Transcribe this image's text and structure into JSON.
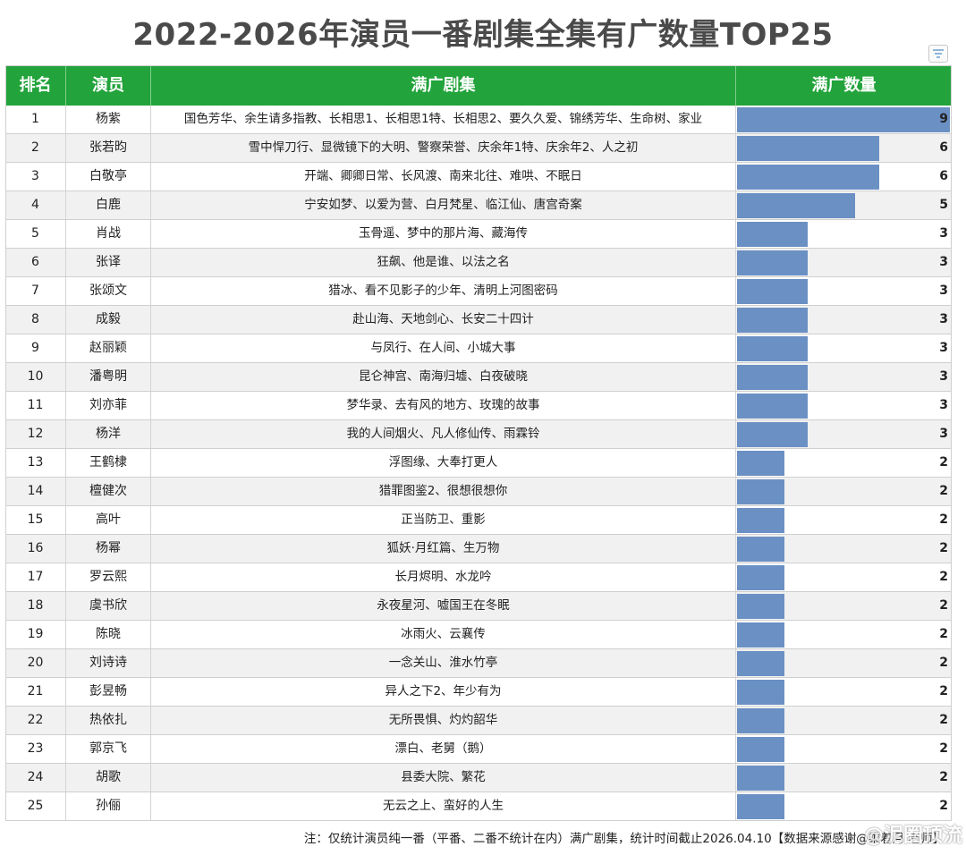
{
  "title": "2022-2026年演员一番剧集全集有广数量TOP25",
  "headers": {
    "rank": "排名",
    "actor": "演员",
    "dramas": "满广剧集",
    "count": "满广数量"
  },
  "colors": {
    "header_bg": "#22a33b",
    "bar": "#6b90c4"
  },
  "chart_data": {
    "type": "bar",
    "categories": [
      "杨紫",
      "张若昀",
      "白敬亭",
      "白鹿",
      "肖战",
      "张译",
      "张颂文",
      "成毅",
      "赵丽颖",
      "潘粤明",
      "刘亦菲",
      "杨洋",
      "王鹤棣",
      "檀健次",
      "高叶",
      "杨幂",
      "罗云熙",
      "虞书欣",
      "陈晓",
      "刘诗诗",
      "彭昱畅",
      "热依扎",
      "郭京飞",
      "胡歌",
      "孙俪"
    ],
    "values": [
      9,
      6,
      6,
      5,
      3,
      3,
      3,
      3,
      3,
      3,
      3,
      3,
      2,
      2,
      2,
      2,
      2,
      2,
      2,
      2,
      2,
      2,
      2,
      2,
      2
    ],
    "xlim": [
      0,
      9
    ]
  },
  "rows": [
    {
      "rank": "1",
      "actor": "杨紫",
      "dramas": "国色芳华、余生请多指教、长相思1、长相思1特、长相思2、要久久爱、锦绣芳华、生命树、家业",
      "count": "9"
    },
    {
      "rank": "2",
      "actor": "张若昀",
      "dramas": "雪中悍刀行、显微镜下的大明、警察荣誉、庆余年1特、庆余年2、人之初",
      "count": "6"
    },
    {
      "rank": "3",
      "actor": "白敬亭",
      "dramas": "开端、卿卿日常、长风渡、南来北往、难哄、不眠日",
      "count": "6"
    },
    {
      "rank": "4",
      "actor": "白鹿",
      "dramas": "宁安如梦、以爱为营、白月梵星、临江仙、唐宫奇案",
      "count": "5"
    },
    {
      "rank": "5",
      "actor": "肖战",
      "dramas": "玉骨遥、梦中的那片海、藏海传",
      "count": "3"
    },
    {
      "rank": "6",
      "actor": "张译",
      "dramas": "狂飙、他是谁、以法之名",
      "count": "3"
    },
    {
      "rank": "7",
      "actor": "张颂文",
      "dramas": "猎冰、看不见影子的少年、清明上河图密码",
      "count": "3"
    },
    {
      "rank": "8",
      "actor": "成毅",
      "dramas": "赴山海、天地剑心、长安二十四计",
      "count": "3"
    },
    {
      "rank": "9",
      "actor": "赵丽颖",
      "dramas": "与凤行、在人间、小城大事",
      "count": "3"
    },
    {
      "rank": "10",
      "actor": "潘粤明",
      "dramas": "昆仑神宫、南海归墟、白夜破晓",
      "count": "3"
    },
    {
      "rank": "11",
      "actor": "刘亦菲",
      "dramas": "梦华录、去有风的地方、玫瑰的故事",
      "count": "3"
    },
    {
      "rank": "12",
      "actor": "杨洋",
      "dramas": "我的人间烟火、凡人修仙传、雨霖铃",
      "count": "3"
    },
    {
      "rank": "13",
      "actor": "王鹤棣",
      "dramas": "浮图缘、大奉打更人",
      "count": "2"
    },
    {
      "rank": "14",
      "actor": "檀健次",
      "dramas": "猎罪图鉴2、很想很想你",
      "count": "2"
    },
    {
      "rank": "15",
      "actor": "高叶",
      "dramas": "正当防卫、重影",
      "count": "2"
    },
    {
      "rank": "16",
      "actor": "杨幂",
      "dramas": "狐妖·月红篇、生万物",
      "count": "2"
    },
    {
      "rank": "17",
      "actor": "罗云熙",
      "dramas": "长月烬明、水龙吟",
      "count": "2"
    },
    {
      "rank": "18",
      "actor": "虞书欣",
      "dramas": "永夜星河、嘘国王在冬眠",
      "count": "2"
    },
    {
      "rank": "19",
      "actor": "陈晓",
      "dramas": "冰雨火、云襄传",
      "count": "2"
    },
    {
      "rank": "20",
      "actor": "刘诗诗",
      "dramas": "一念关山、淮水竹亭",
      "count": "2"
    },
    {
      "rank": "21",
      "actor": "彭昱畅",
      "dramas": "异人之下2、年少有为",
      "count": "2"
    },
    {
      "rank": "22",
      "actor": "热依扎",
      "dramas": "无所畏惧、灼灼韶华",
      "count": "2"
    },
    {
      "rank": "23",
      "actor": "郭京飞",
      "dramas": "漂白、老舅（鹅）",
      "count": "2"
    },
    {
      "rank": "24",
      "actor": "胡歌",
      "dramas": "县委大院、繁花",
      "count": "2"
    },
    {
      "rank": "25",
      "actor": "孙俪",
      "dramas": "无云之上、蛮好的人生",
      "count": "2"
    }
  ],
  "note": "注：仅统计演员纯一番（平番、二番不统计在内）满广剧集，统计时间截止2026.04.10【数据来源感谢@乘着月 老师】",
  "watermark": "@泥圈顶流"
}
